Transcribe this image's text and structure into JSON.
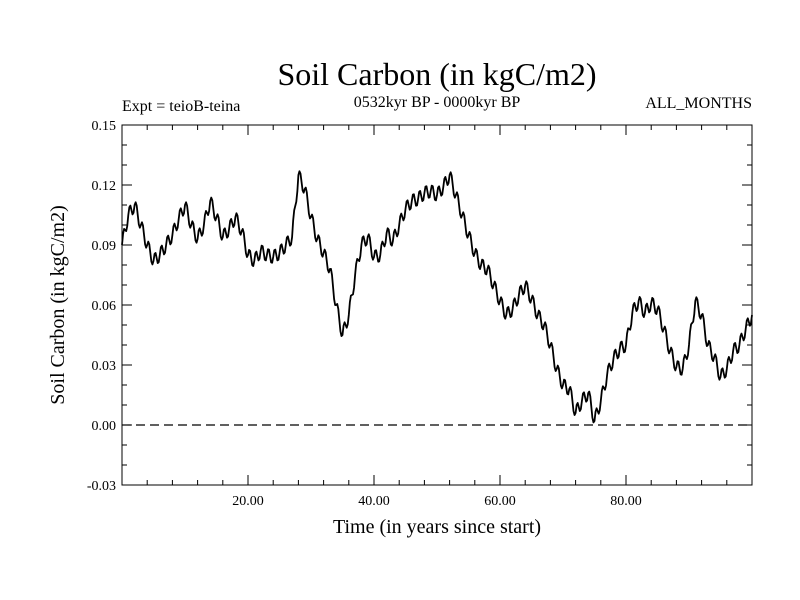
{
  "chart_data": {
    "type": "line",
    "title": "Soil Carbon (in kgC/m2)",
    "subtitle": "0532kyr BP - 0000kyr BP",
    "experiment_label": "Expt = teioB-teina",
    "period_label": "ALL_MONTHS",
    "xlabel": "Time (in years since start)",
    "ylabel": "Soil Carbon (in kgC/m2)",
    "xlim": [
      0,
      100
    ],
    "ylim": [
      -0.03,
      0.15
    ],
    "x_ticks": [
      20,
      40,
      60,
      80
    ],
    "x_tick_labels": [
      "20.00",
      "40.00",
      "60.00",
      "80.00"
    ],
    "y_ticks": [
      -0.03,
      0.0,
      0.03,
      0.06,
      0.09,
      0.12,
      0.15
    ],
    "y_tick_labels": [
      "-0.03",
      "0.00",
      "0.03",
      "0.06",
      "0.09",
      "0.12",
      "0.15"
    ],
    "zero_line": {
      "y": 0.0,
      "style": "dashed"
    },
    "series": [
      {
        "name": "Soil Carbon",
        "color": "#000000",
        "x": [
          0,
          1,
          2,
          3,
          4,
          5,
          6,
          7,
          8,
          9,
          10,
          11,
          12,
          13,
          14,
          15,
          16,
          17,
          18,
          19,
          20,
          21,
          22,
          23,
          24,
          25,
          26,
          27,
          28,
          29,
          30,
          31,
          32,
          33,
          34,
          35,
          36,
          37,
          38,
          39,
          40,
          41,
          42,
          43,
          44,
          45,
          46,
          47,
          48,
          49,
          50,
          51,
          52,
          53,
          54,
          55,
          56,
          57,
          58,
          59,
          60,
          61,
          62,
          63,
          64,
          65,
          66,
          67,
          68,
          69,
          70,
          71,
          72,
          73,
          74,
          75,
          76,
          77,
          78,
          79,
          80,
          81,
          82,
          83,
          84,
          85,
          86,
          87,
          88,
          89,
          90,
          91,
          92,
          93,
          94,
          95,
          96,
          97,
          98,
          99,
          100
        ],
        "values": [
          0.09,
          0.105,
          0.11,
          0.1,
          0.09,
          0.082,
          0.085,
          0.09,
          0.095,
          0.103,
          0.11,
          0.1,
          0.093,
          0.1,
          0.112,
          0.104,
          0.094,
          0.098,
          0.104,
          0.097,
          0.085,
          0.082,
          0.087,
          0.085,
          0.084,
          0.086,
          0.09,
          0.094,
          0.125,
          0.118,
          0.104,
          0.093,
          0.086,
          0.078,
          0.06,
          0.045,
          0.055,
          0.075,
          0.09,
          0.094,
          0.084,
          0.085,
          0.096,
          0.092,
          0.1,
          0.108,
          0.112,
          0.113,
          0.116,
          0.117,
          0.115,
          0.119,
          0.125,
          0.115,
          0.105,
          0.095,
          0.086,
          0.08,
          0.078,
          0.07,
          0.062,
          0.055,
          0.058,
          0.065,
          0.07,
          0.063,
          0.055,
          0.05,
          0.04,
          0.028,
          0.02,
          0.018,
          0.006,
          0.012,
          0.016,
          0.002,
          0.012,
          0.025,
          0.033,
          0.038,
          0.04,
          0.056,
          0.062,
          0.056,
          0.061,
          0.058,
          0.048,
          0.037,
          0.029,
          0.028,
          0.04,
          0.062,
          0.055,
          0.04,
          0.034,
          0.024,
          0.028,
          0.037,
          0.04,
          0.048,
          0.055
        ]
      }
    ]
  }
}
